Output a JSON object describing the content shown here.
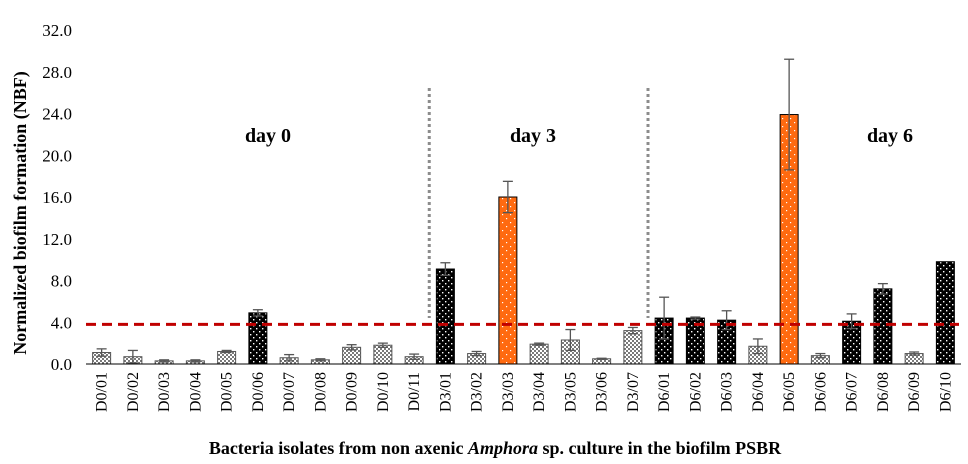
{
  "chart_data": {
    "type": "bar",
    "xlabel_parts": [
      {
        "text": "Bacteria isolates from non axenic ",
        "italic": false
      },
      {
        "text": "Amphora",
        "italic": true
      },
      {
        "text": " sp. culture in the biofilm PSBR",
        "italic": false
      }
    ],
    "ylabel": "Normalized biofilm formation (NBF)",
    "ylim": [
      0,
      32
    ],
    "yticks": [
      "0.0",
      "4.0",
      "8.0",
      "12.0",
      "16.0",
      "20.0",
      "24.0",
      "28.0",
      "32.0"
    ],
    "categories": [
      "D0/01",
      "D0/02",
      "D0/03",
      "D0/04",
      "D0/05",
      "D0/06",
      "D0/07",
      "D0/08",
      "D0/09",
      "D0/10",
      "D0/11",
      "D3/01",
      "D3/02",
      "D3/03",
      "D3/04",
      "D3/05",
      "D3/06",
      "D3/07",
      "D6/01",
      "D6/02",
      "D6/03",
      "D6/04",
      "D6/05",
      "D6/06",
      "D6/07",
      "D6/08",
      "D6/09",
      "D6/10"
    ],
    "values": [
      1.1,
      0.7,
      0.3,
      0.3,
      1.2,
      4.9,
      0.6,
      0.4,
      1.6,
      1.8,
      0.7,
      9.1,
      1.0,
      16.0,
      1.9,
      2.3,
      0.5,
      3.2,
      4.4,
      4.4,
      4.2,
      1.7,
      23.9,
      0.8,
      4.1,
      7.2,
      1.0,
      9.8
    ],
    "errors": [
      0.35,
      0.6,
      0.1,
      0.1,
      0.1,
      0.3,
      0.3,
      0.1,
      0.25,
      0.2,
      0.25,
      0.6,
      0.2,
      1.5,
      0.1,
      1.0,
      0.05,
      0.3,
      2.0,
      0.1,
      0.9,
      0.7,
      5.3,
      0.2,
      0.7,
      0.5,
      0.15,
      0.0
    ],
    "bar_styles": [
      "light",
      "light",
      "light",
      "light",
      "light",
      "dark",
      "light",
      "light",
      "light",
      "light",
      "light",
      "dark",
      "light",
      "orange",
      "light",
      "light",
      "light",
      "light",
      "dark",
      "dark",
      "dark",
      "light",
      "orange",
      "light",
      "dark",
      "dark",
      "light",
      "dark"
    ],
    "colors": {
      "dark": "#000000",
      "light": "#a8a8a8",
      "orange": "#ff6a10",
      "threshold": "#c00000",
      "divider": "#8c8c8c",
      "error": "#555555"
    },
    "threshold": 3.8,
    "dividers_after_index": [
      10,
      17
    ],
    "groups": [
      {
        "label": "day 0",
        "from": 0,
        "to": 10
      },
      {
        "label": "day 3",
        "from": 11,
        "to": 17
      },
      {
        "label": "day 6",
        "from": 18,
        "to": 27
      }
    ],
    "grid": false
  }
}
